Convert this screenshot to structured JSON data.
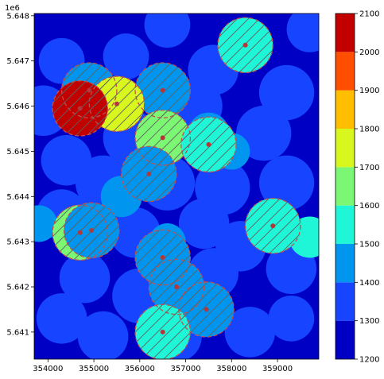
{
  "chart_data": {
    "type": "heatmap",
    "y_offset_label": "1e6",
    "xlim": [
      353700,
      359900
    ],
    "ylim": [
      5640400,
      5648050
    ],
    "x_ticks": [
      354000,
      355000,
      356000,
      357000,
      358000,
      359000
    ],
    "x_tick_labels": [
      "354000",
      "355000",
      "356000",
      "357000",
      "358000",
      "359000"
    ],
    "y_ticks": [
      5641000,
      5642000,
      5643000,
      5644000,
      5645000,
      5646000,
      5647000,
      5648000
    ],
    "y_tick_labels": [
      "5.641",
      "5.642",
      "5.643",
      "5.644",
      "5.645",
      "5.646",
      "5.647",
      "5.648"
    ],
    "background_color": "#0000c4",
    "grid": false,
    "colorbar": {
      "position": "right",
      "levels": [
        1200,
        1300,
        1400,
        1500,
        1600,
        1700,
        1800,
        1900,
        2000,
        2100
      ],
      "tick_labels": [
        "1200",
        "1300",
        "1400",
        "1500",
        "1600",
        "1700",
        "1800",
        "1900",
        "2000",
        "2100"
      ],
      "colors": [
        "#0000c4",
        "#1744ff",
        "#0096f0",
        "#1ff5d7",
        "#7bf773",
        "#d7f71f",
        "#ffbe00",
        "#ff4e00",
        "#c20000"
      ]
    },
    "value_disks": [
      {
        "x": 354200,
        "y": 5647900,
        "r": 400,
        "value": 1250
      },
      {
        "x": 356600,
        "y": 5647800,
        "r": 500,
        "value": 1350
      },
      {
        "x": 359700,
        "y": 5647700,
        "r": 500,
        "value": 1350
      },
      {
        "x": 354300,
        "y": 5647000,
        "r": 500,
        "value": 1350
      },
      {
        "x": 355700,
        "y": 5647100,
        "r": 500,
        "value": 1350
      },
      {
        "x": 357600,
        "y": 5646800,
        "r": 550,
        "value": 1350
      },
      {
        "x": 359200,
        "y": 5646300,
        "r": 600,
        "value": 1350
      },
      {
        "x": 353900,
        "y": 5645900,
        "r": 550,
        "value": 1350
      },
      {
        "x": 355800,
        "y": 5645300,
        "r": 600,
        "value": 1350
      },
      {
        "x": 357200,
        "y": 5646000,
        "r": 600,
        "value": 1350
      },
      {
        "x": 358700,
        "y": 5645400,
        "r": 600,
        "value": 1350
      },
      {
        "x": 354400,
        "y": 5644800,
        "r": 550,
        "value": 1350
      },
      {
        "x": 355200,
        "y": 5644300,
        "r": 600,
        "value": 1350
      },
      {
        "x": 356600,
        "y": 5644300,
        "r": 600,
        "value": 1350
      },
      {
        "x": 357800,
        "y": 5644200,
        "r": 600,
        "value": 1350
      },
      {
        "x": 359200,
        "y": 5644300,
        "r": 600,
        "value": 1350
      },
      {
        "x": 354300,
        "y": 5643600,
        "r": 550,
        "value": 1350
      },
      {
        "x": 355900,
        "y": 5643200,
        "r": 550,
        "value": 1350
      },
      {
        "x": 357400,
        "y": 5643400,
        "r": 550,
        "value": 1350
      },
      {
        "x": 358200,
        "y": 5642900,
        "r": 550,
        "value": 1350
      },
      {
        "x": 354800,
        "y": 5642200,
        "r": 550,
        "value": 1350
      },
      {
        "x": 356000,
        "y": 5641800,
        "r": 600,
        "value": 1350
      },
      {
        "x": 357600,
        "y": 5642300,
        "r": 550,
        "value": 1350
      },
      {
        "x": 359300,
        "y": 5642400,
        "r": 550,
        "value": 1350
      },
      {
        "x": 354300,
        "y": 5641300,
        "r": 550,
        "value": 1350
      },
      {
        "x": 355200,
        "y": 5640900,
        "r": 550,
        "value": 1350
      },
      {
        "x": 356800,
        "y": 5640900,
        "r": 550,
        "value": 1350
      },
      {
        "x": 358400,
        "y": 5641000,
        "r": 550,
        "value": 1350
      },
      {
        "x": 359300,
        "y": 5641300,
        "r": 500,
        "value": 1350
      },
      {
        "x": 355600,
        "y": 5644000,
        "r": 450,
        "value": 1450
      },
      {
        "x": 357500,
        "y": 5645400,
        "r": 450,
        "value": 1450
      },
      {
        "x": 358000,
        "y": 5645000,
        "r": 400,
        "value": 1450
      },
      {
        "x": 356600,
        "y": 5643000,
        "r": 400,
        "value": 1450
      },
      {
        "x": 355000,
        "y": 5643300,
        "r": 500,
        "value": 1450
      },
      {
        "x": 353800,
        "y": 5643400,
        "r": 400,
        "value": 1450
      },
      {
        "x": 359700,
        "y": 5643100,
        "r": 450,
        "value": 1550
      }
    ],
    "wells": [
      {
        "x": 358300,
        "y": 5647350,
        "r": 600,
        "value": 1550
      },
      {
        "x": 354900,
        "y": 5646350,
        "r": 600,
        "value": 1450
      },
      {
        "x": 356500,
        "y": 5646350,
        "r": 600,
        "value": 1450
      },
      {
        "x": 355500,
        "y": 5646050,
        "r": 600,
        "value": 1750
      },
      {
        "x": 354700,
        "y": 5645950,
        "r": 600,
        "value": 2050
      },
      {
        "x": 356500,
        "y": 5645300,
        "r": 600,
        "value": 1650
      },
      {
        "x": 357500,
        "y": 5645150,
        "r": 600,
        "value": 1550
      },
      {
        "x": 356200,
        "y": 5644500,
        "r": 600,
        "value": 1450
      },
      {
        "x": 358900,
        "y": 5643350,
        "r": 600,
        "value": 1550
      },
      {
        "x": 354700,
        "y": 5643200,
        "r": 600,
        "value": 1650
      },
      {
        "x": 354950,
        "y": 5643250,
        "r": 600,
        "value": 1450
      },
      {
        "x": 356500,
        "y": 5642650,
        "r": 600,
        "value": 1450
      },
      {
        "x": 356800,
        "y": 5642000,
        "r": 600,
        "value": 1450
      },
      {
        "x": 357450,
        "y": 5641500,
        "r": 600,
        "value": 1450
      },
      {
        "x": 356500,
        "y": 5641000,
        "r": 600,
        "value": 1550
      }
    ]
  }
}
